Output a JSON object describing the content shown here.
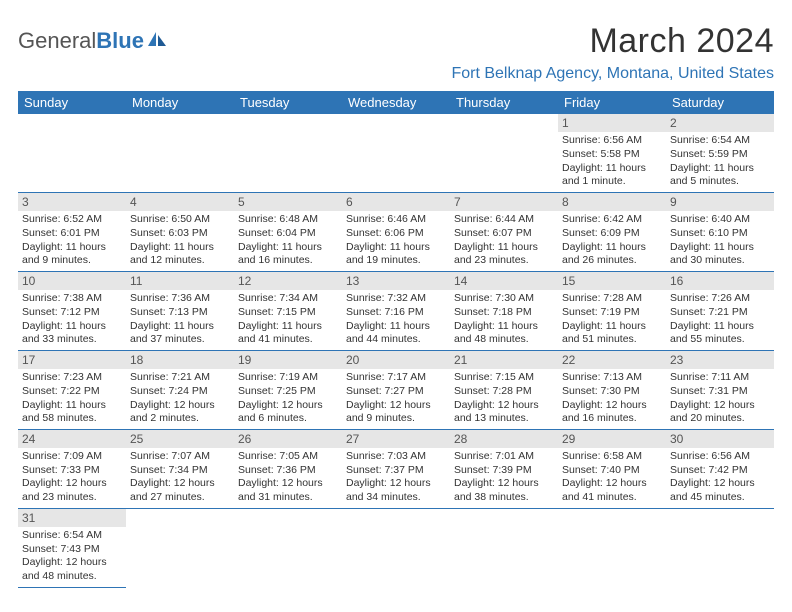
{
  "logo": {
    "general": "General",
    "blue": "Blue"
  },
  "header": {
    "month_title": "March 2024",
    "location": "Fort Belknap Agency, Montana, United States"
  },
  "colors": {
    "primary": "#2e74b5",
    "daynum_bg": "#e6e6e6",
    "text": "#333333"
  },
  "weekdays": [
    "Sunday",
    "Monday",
    "Tuesday",
    "Wednesday",
    "Thursday",
    "Friday",
    "Saturday"
  ],
  "calendar": {
    "rows": [
      [
        {
          "empty": true
        },
        {
          "empty": true
        },
        {
          "empty": true
        },
        {
          "empty": true
        },
        {
          "empty": true
        },
        {
          "num": "1",
          "sunrise": "Sunrise: 6:56 AM",
          "sunset": "Sunset: 5:58 PM",
          "daylight": "Daylight: 11 hours and 1 minute."
        },
        {
          "num": "2",
          "sunrise": "Sunrise: 6:54 AM",
          "sunset": "Sunset: 5:59 PM",
          "daylight": "Daylight: 11 hours and 5 minutes."
        }
      ],
      [
        {
          "num": "3",
          "sunrise": "Sunrise: 6:52 AM",
          "sunset": "Sunset: 6:01 PM",
          "daylight": "Daylight: 11 hours and 9 minutes."
        },
        {
          "num": "4",
          "sunrise": "Sunrise: 6:50 AM",
          "sunset": "Sunset: 6:03 PM",
          "daylight": "Daylight: 11 hours and 12 minutes."
        },
        {
          "num": "5",
          "sunrise": "Sunrise: 6:48 AM",
          "sunset": "Sunset: 6:04 PM",
          "daylight": "Daylight: 11 hours and 16 minutes."
        },
        {
          "num": "6",
          "sunrise": "Sunrise: 6:46 AM",
          "sunset": "Sunset: 6:06 PM",
          "daylight": "Daylight: 11 hours and 19 minutes."
        },
        {
          "num": "7",
          "sunrise": "Sunrise: 6:44 AM",
          "sunset": "Sunset: 6:07 PM",
          "daylight": "Daylight: 11 hours and 23 minutes."
        },
        {
          "num": "8",
          "sunrise": "Sunrise: 6:42 AM",
          "sunset": "Sunset: 6:09 PM",
          "daylight": "Daylight: 11 hours and 26 minutes."
        },
        {
          "num": "9",
          "sunrise": "Sunrise: 6:40 AM",
          "sunset": "Sunset: 6:10 PM",
          "daylight": "Daylight: 11 hours and 30 minutes."
        }
      ],
      [
        {
          "num": "10",
          "sunrise": "Sunrise: 7:38 AM",
          "sunset": "Sunset: 7:12 PM",
          "daylight": "Daylight: 11 hours and 33 minutes."
        },
        {
          "num": "11",
          "sunrise": "Sunrise: 7:36 AM",
          "sunset": "Sunset: 7:13 PM",
          "daylight": "Daylight: 11 hours and 37 minutes."
        },
        {
          "num": "12",
          "sunrise": "Sunrise: 7:34 AM",
          "sunset": "Sunset: 7:15 PM",
          "daylight": "Daylight: 11 hours and 41 minutes."
        },
        {
          "num": "13",
          "sunrise": "Sunrise: 7:32 AM",
          "sunset": "Sunset: 7:16 PM",
          "daylight": "Daylight: 11 hours and 44 minutes."
        },
        {
          "num": "14",
          "sunrise": "Sunrise: 7:30 AM",
          "sunset": "Sunset: 7:18 PM",
          "daylight": "Daylight: 11 hours and 48 minutes."
        },
        {
          "num": "15",
          "sunrise": "Sunrise: 7:28 AM",
          "sunset": "Sunset: 7:19 PM",
          "daylight": "Daylight: 11 hours and 51 minutes."
        },
        {
          "num": "16",
          "sunrise": "Sunrise: 7:26 AM",
          "sunset": "Sunset: 7:21 PM",
          "daylight": "Daylight: 11 hours and 55 minutes."
        }
      ],
      [
        {
          "num": "17",
          "sunrise": "Sunrise: 7:23 AM",
          "sunset": "Sunset: 7:22 PM",
          "daylight": "Daylight: 11 hours and 58 minutes."
        },
        {
          "num": "18",
          "sunrise": "Sunrise: 7:21 AM",
          "sunset": "Sunset: 7:24 PM",
          "daylight": "Daylight: 12 hours and 2 minutes."
        },
        {
          "num": "19",
          "sunrise": "Sunrise: 7:19 AM",
          "sunset": "Sunset: 7:25 PM",
          "daylight": "Daylight: 12 hours and 6 minutes."
        },
        {
          "num": "20",
          "sunrise": "Sunrise: 7:17 AM",
          "sunset": "Sunset: 7:27 PM",
          "daylight": "Daylight: 12 hours and 9 minutes."
        },
        {
          "num": "21",
          "sunrise": "Sunrise: 7:15 AM",
          "sunset": "Sunset: 7:28 PM",
          "daylight": "Daylight: 12 hours and 13 minutes."
        },
        {
          "num": "22",
          "sunrise": "Sunrise: 7:13 AM",
          "sunset": "Sunset: 7:30 PM",
          "daylight": "Daylight: 12 hours and 16 minutes."
        },
        {
          "num": "23",
          "sunrise": "Sunrise: 7:11 AM",
          "sunset": "Sunset: 7:31 PM",
          "daylight": "Daylight: 12 hours and 20 minutes."
        }
      ],
      [
        {
          "num": "24",
          "sunrise": "Sunrise: 7:09 AM",
          "sunset": "Sunset: 7:33 PM",
          "daylight": "Daylight: 12 hours and 23 minutes."
        },
        {
          "num": "25",
          "sunrise": "Sunrise: 7:07 AM",
          "sunset": "Sunset: 7:34 PM",
          "daylight": "Daylight: 12 hours and 27 minutes."
        },
        {
          "num": "26",
          "sunrise": "Sunrise: 7:05 AM",
          "sunset": "Sunset: 7:36 PM",
          "daylight": "Daylight: 12 hours and 31 minutes."
        },
        {
          "num": "27",
          "sunrise": "Sunrise: 7:03 AM",
          "sunset": "Sunset: 7:37 PM",
          "daylight": "Daylight: 12 hours and 34 minutes."
        },
        {
          "num": "28",
          "sunrise": "Sunrise: 7:01 AM",
          "sunset": "Sunset: 7:39 PM",
          "daylight": "Daylight: 12 hours and 38 minutes."
        },
        {
          "num": "29",
          "sunrise": "Sunrise: 6:58 AM",
          "sunset": "Sunset: 7:40 PM",
          "daylight": "Daylight: 12 hours and 41 minutes."
        },
        {
          "num": "30",
          "sunrise": "Sunrise: 6:56 AM",
          "sunset": "Sunset: 7:42 PM",
          "daylight": "Daylight: 12 hours and 45 minutes."
        }
      ],
      [
        {
          "num": "31",
          "sunrise": "Sunrise: 6:54 AM",
          "sunset": "Sunset: 7:43 PM",
          "daylight": "Daylight: 12 hours and 48 minutes."
        },
        {
          "empty": true,
          "noborder": true
        },
        {
          "empty": true,
          "noborder": true
        },
        {
          "empty": true,
          "noborder": true
        },
        {
          "empty": true,
          "noborder": true
        },
        {
          "empty": true,
          "noborder": true
        },
        {
          "empty": true,
          "noborder": true
        }
      ]
    ]
  }
}
